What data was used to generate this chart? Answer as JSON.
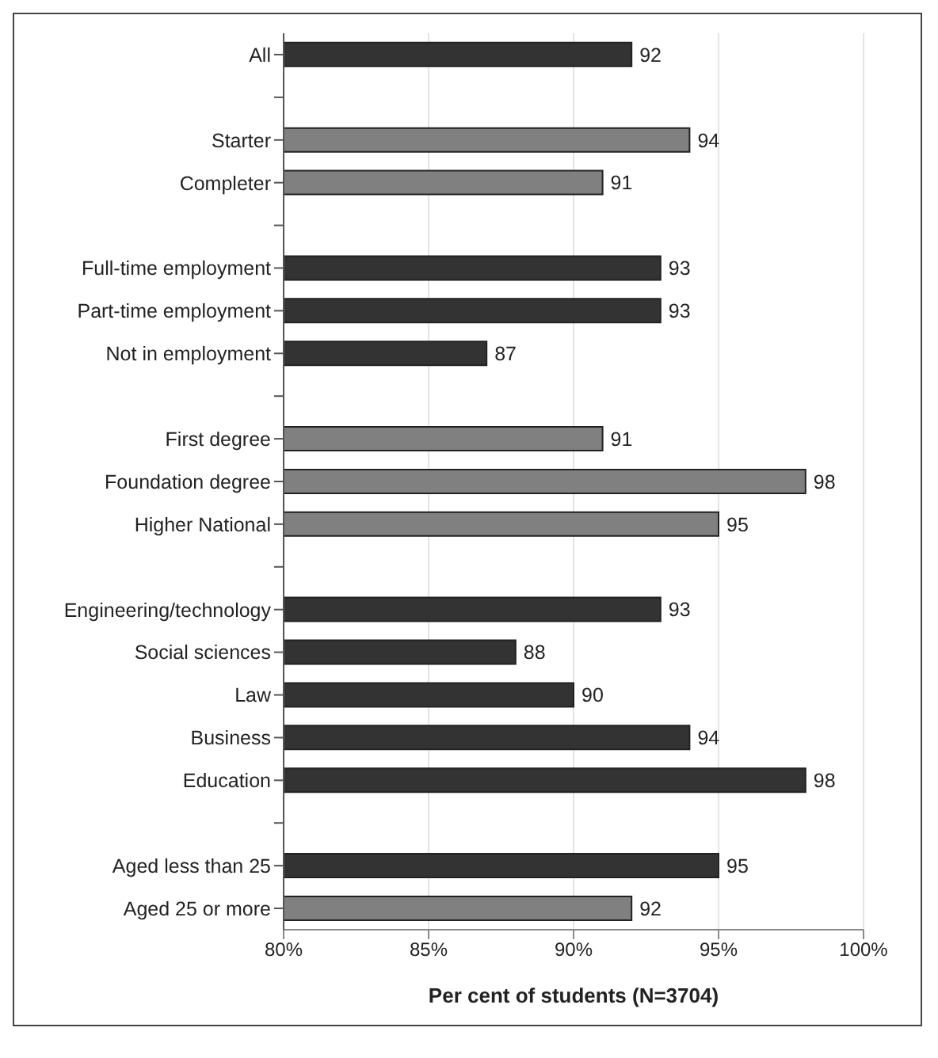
{
  "chart_data": {
    "type": "bar",
    "orientation": "horizontal",
    "xlabel": "Per cent of students (N=3704)",
    "categories": [
      "All",
      null,
      "Starter",
      "Completer",
      null,
      "Full-time employment",
      "Part-time employment",
      "Not in employment",
      null,
      "First degree",
      "Foundation degree",
      "Higher National",
      null,
      "Engineering/technology",
      "Social sciences",
      "Law",
      "Business",
      "Education",
      null,
      "Aged less than 25",
      "Aged 25 or more"
    ],
    "values": [
      92,
      null,
      94,
      91,
      null,
      93,
      93,
      87,
      null,
      91,
      98,
      95,
      null,
      93,
      88,
      90,
      94,
      98,
      null,
      95,
      92
    ],
    "colors": [
      "#333333",
      null,
      "#808080",
      "#808080",
      null,
      "#333333",
      "#333333",
      "#333333",
      null,
      "#808080",
      "#808080",
      "#808080",
      null,
      "#333333",
      "#333333",
      "#333333",
      "#333333",
      "#333333",
      null,
      "#333333",
      "#808080"
    ],
    "xlim": [
      80,
      100
    ],
    "xticks": [
      {
        "value": 80,
        "label": "80%"
      },
      {
        "value": 85,
        "label": "85%"
      },
      {
        "value": 90,
        "label": "90%"
      },
      {
        "value": 95,
        "label": "95%"
      },
      {
        "value": 100,
        "label": "100%"
      }
    ],
    "grid": "x",
    "data_labels": true
  }
}
